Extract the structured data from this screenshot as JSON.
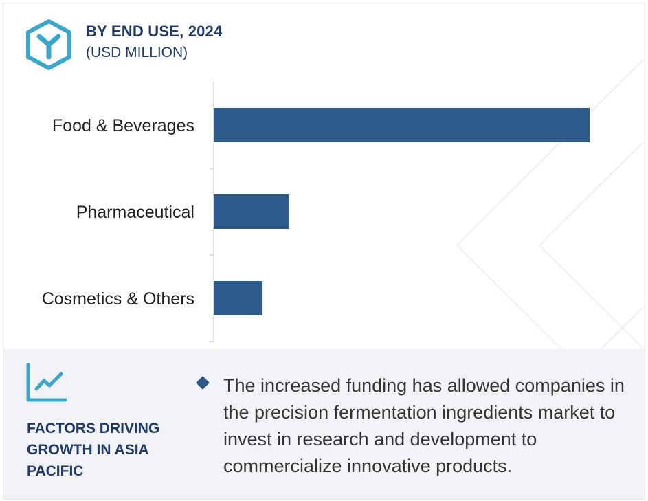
{
  "header": {
    "title": "BY END USE, 2024",
    "subtitle": "(USD MILLION)",
    "logo_icon": "hexagon-y-icon"
  },
  "chart_data": {
    "type": "bar",
    "orientation": "horizontal",
    "categories": [
      "Food & Beverages",
      "Pharmaceutical",
      "Cosmetics & Others"
    ],
    "values": [
      100,
      20,
      13
    ],
    "title": "BY END USE, 2024",
    "ylabel": "",
    "xlabel": "",
    "bar_color": "#2c5a8a",
    "grid": false,
    "legend": "none"
  },
  "factors": {
    "icon": "line-chart-icon",
    "title": "FACTORS DRIVING GROWTH IN ASIA PACIFIC",
    "bullet_text": "The increased funding has allowed companies in the precision fermentation ingredients market to invest in research and development to commercialize innovative products.",
    "accent_color": "#2c5a8a"
  }
}
